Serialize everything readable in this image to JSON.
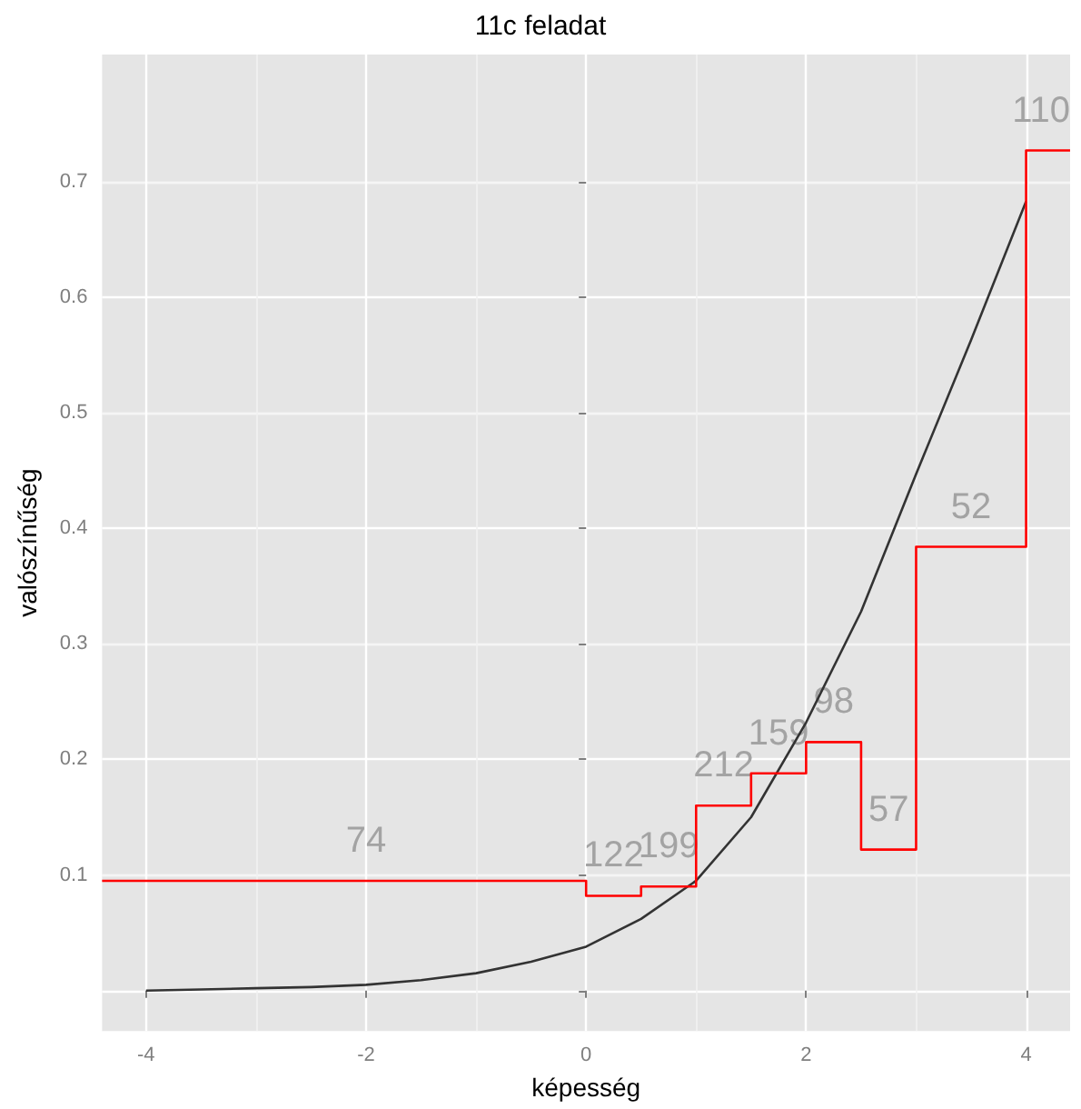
{
  "chart_data": {
    "type": "line",
    "title": "11c feladat",
    "xlabel": "képesség",
    "ylabel": "valószínűség",
    "xlim": [
      -4.4,
      4.4
    ],
    "xticks": [
      -4,
      -2,
      0,
      2,
      4
    ],
    "ylim": [
      -0.035,
      0.81
    ],
    "yticks": [
      {
        "value": 0,
        "label": null
      },
      0.1,
      0.2,
      0.3,
      0.4,
      0.5,
      0.6,
      0.7
    ],
    "grid": true,
    "marker": "none",
    "line_style": "solid",
    "series": [
      {
        "color": "#333333",
        "x": [
          -4,
          -3.5,
          -3,
          -2.5,
          -2,
          -1.5,
          -1,
          -0.5,
          0,
          0.5,
          1,
          1.5,
          2,
          2.5,
          3,
          3.5,
          4
        ],
        "values": [
          0.0,
          0.001,
          0.002,
          0.003,
          0.005,
          0.009,
          0.015,
          0.025,
          0.038,
          0.062,
          0.095,
          0.15,
          0.232,
          0.328,
          0.447,
          0.563,
          0.683
        ]
      },
      {
        "type": "step",
        "color": "#ff0000",
        "x": [
          -4.4,
          0,
          0.5,
          1,
          1.5,
          2,
          2.5,
          3,
          4,
          4.4
        ],
        "values": [
          0.095,
          0.082,
          0.09,
          0.16,
          0.188,
          0.215,
          0.122,
          0.384,
          0.727,
          0.727
        ]
      }
    ],
    "annotations": [
      {
        "text": "74",
        "x": -2,
        "y": 0.095
      },
      {
        "text": "122",
        "x": 0.25,
        "y": 0.082
      },
      {
        "text": "199",
        "x": 0.75,
        "y": 0.09
      },
      {
        "text": "212",
        "x": 1.25,
        "y": 0.16
      },
      {
        "text": "159",
        "x": 1.75,
        "y": 0.188
      },
      {
        "text": "98",
        "x": 2.25,
        "y": 0.215
      },
      {
        "text": "57",
        "x": 2.75,
        "y": 0.122
      },
      {
        "text": "52",
        "x": 3.5,
        "y": 0.384
      },
      {
        "text": "110",
        "x": 4.2,
        "y": 0.727
      }
    ]
  }
}
